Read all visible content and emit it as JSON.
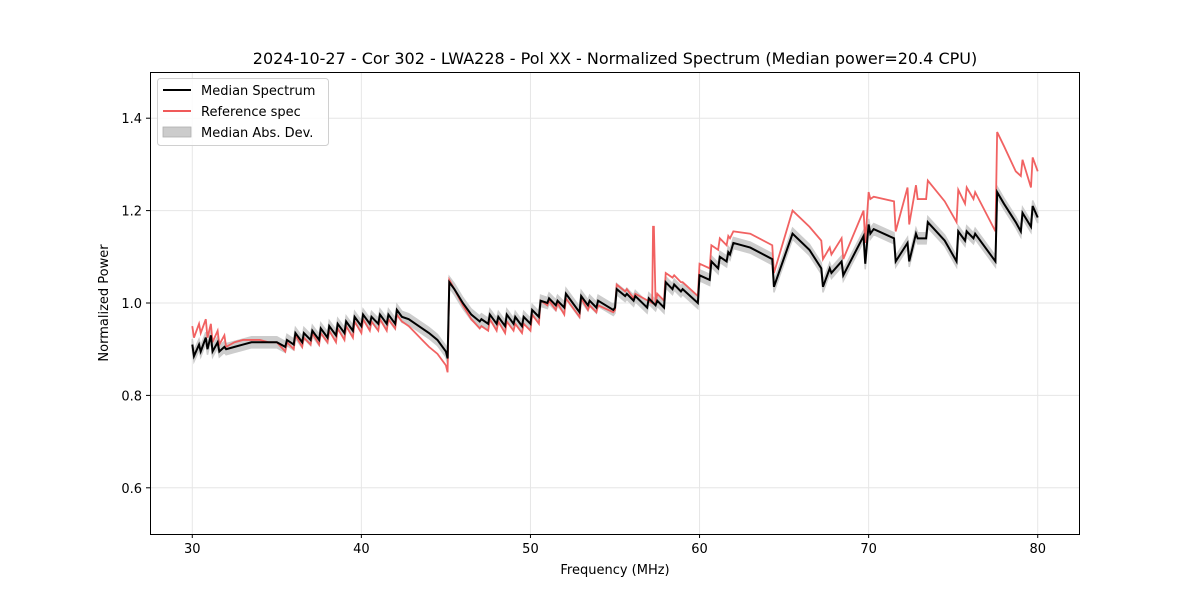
{
  "chart_data": {
    "type": "line",
    "title": "2024-10-27 - Cor 302 - LWA228 - Pol XX - Normalized Spectrum (Median power=20.4 CPU)",
    "xlabel": "Frequency (MHz)",
    "ylabel": "Normalized Power",
    "xlim": [
      27.5,
      82.5
    ],
    "ylim": [
      0.5,
      1.5
    ],
    "xticks": [
      30,
      40,
      50,
      60,
      70,
      80
    ],
    "xtick_labels": [
      "30",
      "40",
      "50",
      "60",
      "70",
      "80"
    ],
    "yticks": [
      0.6,
      0.8,
      1.0,
      1.2,
      1.4
    ],
    "ytick_labels": [
      "0.6",
      "0.8",
      "1.0",
      "1.2",
      "1.4"
    ],
    "grid": true,
    "legend_position": "top-left",
    "legend": [
      {
        "label": "Median Spectrum",
        "kind": "line",
        "color": "#000000"
      },
      {
        "label": "Reference spec",
        "kind": "line",
        "color": "#f05a5a"
      },
      {
        "label": "Median Abs. Dev.",
        "kind": "band",
        "color": "#cccccc"
      }
    ],
    "mad_halfwidth": 0.012,
    "series": [
      {
        "name": "Median Spectrum",
        "color": "#000000",
        "x": [
          30.0,
          30.1,
          30.4,
          30.5,
          30.8,
          30.9,
          31.1,
          31.2,
          31.5,
          31.6,
          31.9,
          32.0,
          32.5,
          33.0,
          33.5,
          34.0,
          34.5,
          35.0,
          35.5,
          35.6,
          36.0,
          36.1,
          36.5,
          36.6,
          37.0,
          37.1,
          37.5,
          37.6,
          38.0,
          38.1,
          38.5,
          38.6,
          39.0,
          39.1,
          39.5,
          39.6,
          40.0,
          40.1,
          40.5,
          40.6,
          41.0,
          41.1,
          41.5,
          41.6,
          42.0,
          42.1,
          42.4,
          42.8,
          43.2,
          43.6,
          44.0,
          44.5,
          45.0,
          45.1,
          45.2,
          45.5,
          46.0,
          46.5,
          47.0,
          47.1,
          47.5,
          47.6,
          48.0,
          48.1,
          48.5,
          48.6,
          49.0,
          49.1,
          49.5,
          49.6,
          50.0,
          50.1,
          50.5,
          50.6,
          51.0,
          51.1,
          51.5,
          51.6,
          52.0,
          52.1,
          52.9,
          53.0,
          53.4,
          53.5,
          53.9,
          54.0,
          54.9,
          55.0,
          55.1,
          55.6,
          55.7,
          56.1,
          56.2,
          56.9,
          57.0,
          57.4,
          57.5,
          57.9,
          58.0,
          58.4,
          58.5,
          58.9,
          59.0,
          59.9,
          60.0,
          60.6,
          60.7,
          61.1,
          61.2,
          61.6,
          61.7,
          61.8,
          62.0,
          63.0,
          64.3,
          64.4,
          65.5,
          66.5,
          67.2,
          67.3,
          67.7,
          67.8,
          68.4,
          68.5,
          69.7,
          69.8,
          70.0,
          70.1,
          70.3,
          71.5,
          71.6,
          72.3,
          72.4,
          72.8,
          72.9,
          73.4,
          73.5,
          74.5,
          75.2,
          75.3,
          75.7,
          75.8,
          76.2,
          76.3,
          77.5,
          77.6,
          78.0,
          78.7,
          79.0,
          79.1,
          79.6,
          79.7,
          80.0
        ],
        "y": [
          0.91,
          0.885,
          0.91,
          0.895,
          0.925,
          0.9,
          0.93,
          0.895,
          0.915,
          0.895,
          0.905,
          0.9,
          0.905,
          0.91,
          0.915,
          0.915,
          0.915,
          0.915,
          0.905,
          0.92,
          0.91,
          0.935,
          0.915,
          0.935,
          0.92,
          0.94,
          0.92,
          0.945,
          0.925,
          0.95,
          0.93,
          0.955,
          0.935,
          0.96,
          0.94,
          0.97,
          0.95,
          0.975,
          0.955,
          0.97,
          0.955,
          0.975,
          0.955,
          0.975,
          0.955,
          0.985,
          0.97,
          0.965,
          0.955,
          0.945,
          0.935,
          0.92,
          0.895,
          0.88,
          1.045,
          1.03,
          1.0,
          0.975,
          0.96,
          0.965,
          0.955,
          0.975,
          0.955,
          0.97,
          0.95,
          0.975,
          0.955,
          0.97,
          0.95,
          0.97,
          0.955,
          0.985,
          0.97,
          1.005,
          1.0,
          1.01,
          0.995,
          1.005,
          0.99,
          1.02,
          0.98,
          1.015,
          0.995,
          1.005,
          0.99,
          1.005,
          0.985,
          0.99,
          1.03,
          1.015,
          1.02,
          1.005,
          1.015,
          0.99,
          1.01,
          0.995,
          1.005,
          0.99,
          1.045,
          1.03,
          1.04,
          1.025,
          1.03,
          1.0,
          1.06,
          1.05,
          1.09,
          1.075,
          1.1,
          1.09,
          1.11,
          1.105,
          1.13,
          1.12,
          1.095,
          1.035,
          1.15,
          1.115,
          1.075,
          1.035,
          1.075,
          1.065,
          1.09,
          1.06,
          1.145,
          1.085,
          1.17,
          1.15,
          1.16,
          1.14,
          1.09,
          1.13,
          1.09,
          1.15,
          1.14,
          1.14,
          1.175,
          1.135,
          1.09,
          1.155,
          1.135,
          1.155,
          1.14,
          1.15,
          1.09,
          1.24,
          1.215,
          1.175,
          1.155,
          1.195,
          1.165,
          1.21,
          1.185
        ]
      },
      {
        "name": "Reference spec",
        "color": "#f05a5a",
        "x": [
          30.0,
          30.1,
          30.4,
          30.5,
          30.8,
          30.9,
          31.1,
          31.2,
          31.5,
          31.6,
          31.9,
          32.0,
          32.5,
          33.0,
          33.5,
          34.0,
          34.5,
          35.0,
          35.5,
          35.6,
          36.0,
          36.1,
          36.5,
          36.6,
          37.0,
          37.1,
          37.5,
          37.6,
          38.0,
          38.1,
          38.5,
          38.6,
          39.0,
          39.1,
          39.5,
          39.6,
          40.0,
          40.1,
          40.5,
          40.6,
          41.0,
          41.1,
          41.5,
          41.6,
          42.0,
          42.1,
          42.4,
          42.8,
          43.2,
          43.6,
          44.0,
          44.5,
          45.0,
          45.1,
          45.2,
          45.5,
          46.0,
          46.5,
          47.0,
          47.1,
          47.5,
          47.6,
          48.0,
          48.1,
          48.5,
          48.6,
          49.0,
          49.1,
          49.5,
          49.6,
          50.0,
          50.1,
          50.5,
          50.6,
          51.0,
          51.1,
          51.5,
          51.6,
          52.0,
          52.1,
          52.9,
          53.0,
          53.4,
          53.5,
          53.9,
          54.0,
          54.9,
          55.0,
          55.1,
          55.6,
          55.7,
          56.1,
          56.2,
          57.2,
          57.25,
          57.3,
          57.4,
          57.5,
          57.9,
          58.0,
          58.4,
          58.5,
          58.9,
          59.0,
          59.9,
          60.0,
          60.6,
          60.7,
          61.1,
          61.2,
          61.6,
          61.7,
          61.8,
          62.0,
          63.0,
          64.3,
          64.4,
          65.5,
          66.5,
          67.2,
          67.3,
          67.7,
          67.8,
          68.4,
          68.5,
          69.7,
          69.8,
          70.0,
          70.1,
          70.3,
          71.5,
          71.6,
          72.3,
          72.4,
          72.8,
          72.9,
          73.4,
          73.5,
          74.5,
          75.2,
          75.3,
          75.7,
          75.8,
          76.2,
          76.3,
          77.5,
          77.6,
          78.0,
          78.7,
          79.0,
          79.1,
          79.6,
          79.7,
          80.0
        ],
        "y": [
          0.95,
          0.925,
          0.955,
          0.935,
          0.965,
          0.925,
          0.955,
          0.915,
          0.94,
          0.91,
          0.93,
          0.905,
          0.915,
          0.92,
          0.92,
          0.92,
          0.915,
          0.915,
          0.895,
          0.915,
          0.9,
          0.93,
          0.905,
          0.925,
          0.91,
          0.935,
          0.91,
          0.935,
          0.915,
          0.94,
          0.915,
          0.945,
          0.92,
          0.95,
          0.925,
          0.96,
          0.935,
          0.965,
          0.94,
          0.96,
          0.94,
          0.965,
          0.94,
          0.965,
          0.945,
          0.975,
          0.96,
          0.95,
          0.935,
          0.92,
          0.905,
          0.89,
          0.865,
          0.85,
          1.05,
          1.03,
          0.995,
          0.965,
          0.945,
          0.95,
          0.94,
          0.965,
          0.94,
          0.96,
          0.935,
          0.96,
          0.94,
          0.955,
          0.935,
          0.955,
          0.94,
          0.975,
          0.955,
          1.005,
          0.995,
          1.005,
          0.985,
          1.0,
          0.975,
          1.01,
          0.97,
          1.01,
          0.985,
          0.995,
          0.98,
          0.995,
          0.98,
          0.985,
          1.04,
          1.025,
          1.03,
          1.01,
          1.02,
          1.0,
          1.165,
          1.165,
          1.0,
          1.02,
          1.005,
          1.065,
          1.055,
          1.06,
          1.045,
          1.045,
          1.015,
          1.085,
          1.075,
          1.125,
          1.115,
          1.14,
          1.125,
          1.145,
          1.14,
          1.155,
          1.15,
          1.125,
          1.065,
          1.2,
          1.165,
          1.135,
          1.095,
          1.12,
          1.105,
          1.14,
          1.095,
          1.2,
          1.13,
          1.24,
          1.225,
          1.23,
          1.22,
          1.155,
          1.25,
          1.17,
          1.255,
          1.225,
          1.225,
          1.265,
          1.22,
          1.175,
          1.245,
          1.215,
          1.25,
          1.225,
          1.24,
          1.155,
          1.37,
          1.34,
          1.285,
          1.275,
          1.31,
          1.25,
          1.315,
          1.285
        ]
      }
    ]
  }
}
